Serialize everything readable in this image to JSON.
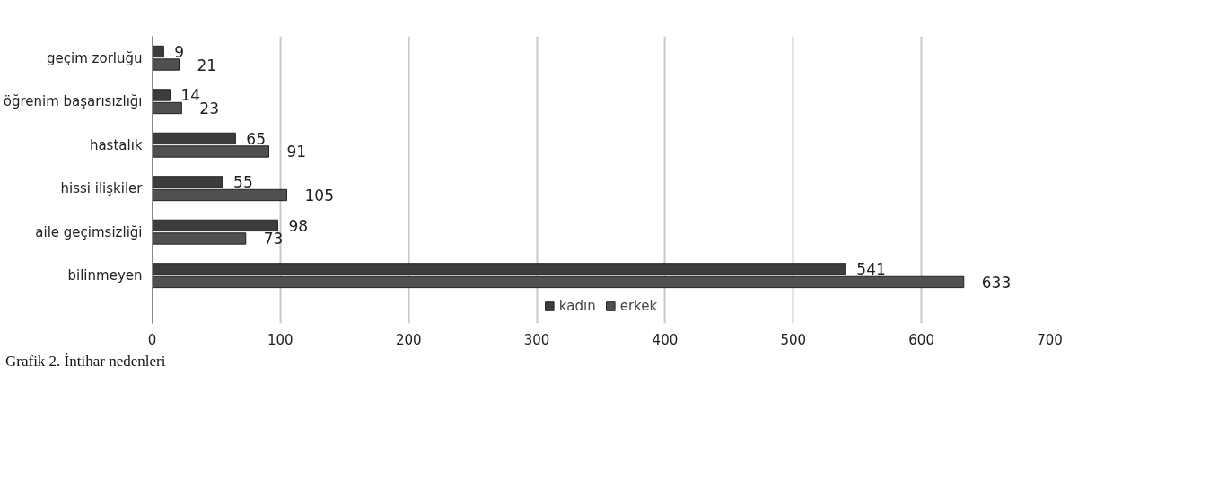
{
  "chart_data": {
    "type": "bar",
    "orientation": "horizontal",
    "categories": [
      "geçim zorluğu",
      "öğrenim başarısızlığı",
      "hastalık",
      "hissi ilişkiler",
      "aile geçimsizliği",
      "bilinmeyen"
    ],
    "series": [
      {
        "name": "kadın",
        "color": "#3c3c3c",
        "values": [
          9,
          14,
          65,
          55,
          98,
          541
        ]
      },
      {
        "name": "erkek",
        "color": "#505050",
        "values": [
          21,
          23,
          91,
          105,
          73,
          633
        ]
      }
    ],
    "xlim": [
      0,
      700
    ],
    "xticks": [
      0,
      100,
      200,
      300,
      400,
      500,
      600,
      700
    ],
    "grid": "x",
    "legend": "bottom",
    "data_labels": true,
    "annotations": [
      "Grafik 2. İntihar nedenleri"
    ]
  }
}
